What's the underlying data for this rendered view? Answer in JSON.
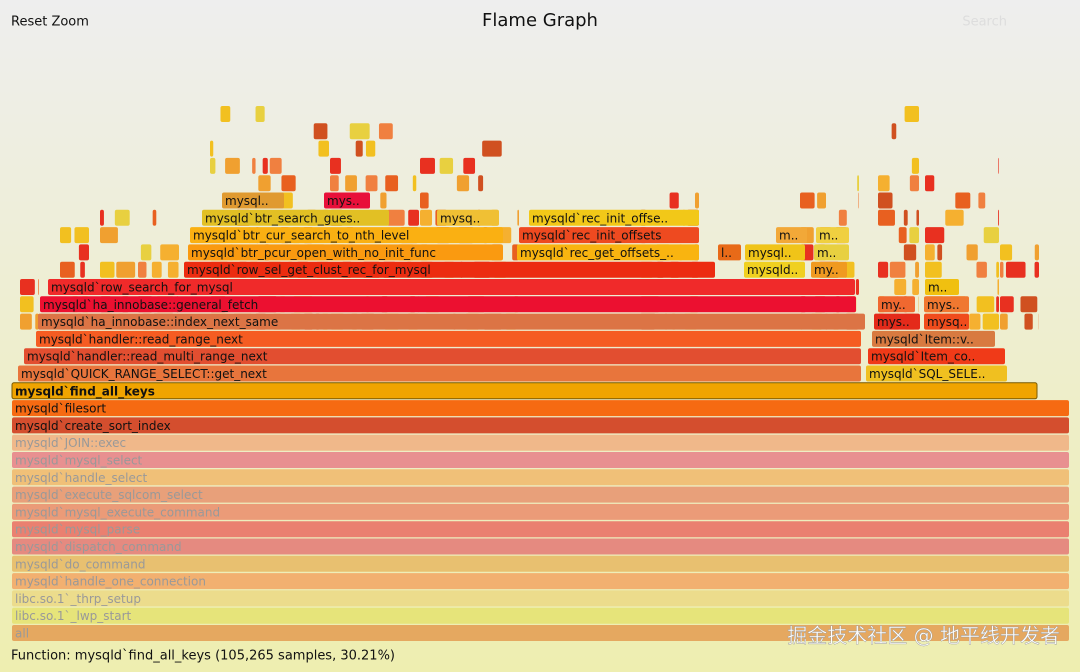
{
  "header": {
    "reset_zoom": "Reset Zoom",
    "title": "Flame Graph",
    "search": "Search"
  },
  "frames": [
    {
      "label": "all"
    },
    {
      "label": "libc.so.1`_lwp_start"
    },
    {
      "label": "libc.so.1`_thrp_setup"
    },
    {
      "label": "mysqld`handle_one_connection"
    },
    {
      "label": "mysqld`do_command"
    },
    {
      "label": "mysqld`dispatch_command"
    },
    {
      "label": "mysqld`mysql_parse"
    },
    {
      "label": "mysqld`mysql_execute_command"
    },
    {
      "label": "mysqld`execute_sqlcom_select"
    },
    {
      "label": "mysqld`handle_select"
    },
    {
      "label": "mysqld`mysql_select"
    },
    {
      "label": "mysqld`JOIN::exec"
    },
    {
      "label": "mysqld`create_sort_index"
    },
    {
      "label": "mysqld`filesort"
    },
    {
      "label": "mysqld`find_all_keys"
    },
    {
      "label": "mysqld`QUICK_RANGE_SELECT::get_next"
    },
    {
      "label": "mysqld`SQL_SELE.."
    },
    {
      "label": "mysqld`handler::read_multi_range_next"
    },
    {
      "label": "mysqld`Item_co.."
    },
    {
      "label": "mysqld`handler::read_range_next"
    },
    {
      "label": "mysqld`Item::v.."
    },
    {
      "label": "mysqld`ha_innobase::index_next_same"
    },
    {
      "label": "mys.."
    },
    {
      "label": "mysq.."
    },
    {
      "label": "mysqld`ha_innobase::general_fetch"
    },
    {
      "label": "my.."
    },
    {
      "label": "mys.."
    },
    {
      "label": "mysqld`row_search_for_mysql"
    },
    {
      "label": "m.."
    },
    {
      "label": "mysqld`row_sel_get_clust_rec_for_mysql"
    },
    {
      "label": "mysqld.."
    },
    {
      "label": "my.."
    },
    {
      "label": "mysqld`btr_pcur_open_with_no_init_func"
    },
    {
      "label": "mysqld`rec_get_offsets_.."
    },
    {
      "label": "l.."
    },
    {
      "label": "mysql.."
    },
    {
      "label": "m.."
    },
    {
      "label": "mysqld`btr_cur_search_to_nth_level"
    },
    {
      "label": "mysqld`rec_init_offsets"
    },
    {
      "label": "m.."
    },
    {
      "label": "m.."
    },
    {
      "label": "mysqld`btr_search_gues.."
    },
    {
      "label": "mysq.."
    },
    {
      "label": "mysqld`rec_init_offse.."
    },
    {
      "label": "mysql.."
    },
    {
      "label": "mys.."
    }
  ],
  "status": "Function: mysqld`find_all_keys (105,265 samples, 30.21%)",
  "watermark": "掘金技术社区 @ 地平线开发者"
}
